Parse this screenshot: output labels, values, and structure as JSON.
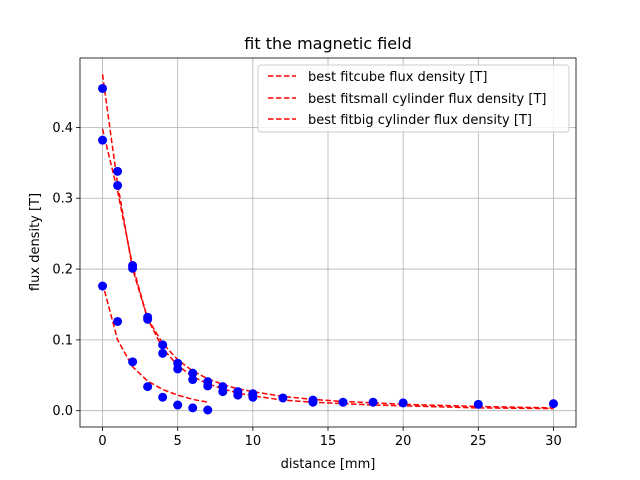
{
  "chart_data": {
    "type": "scatter",
    "title": "fit the magnetic field",
    "xlabel": "distance [mm]",
    "ylabel": "flux density [T]",
    "xlim": [
      -1.5,
      31.5
    ],
    "ylim": [
      -0.023,
      0.498
    ],
    "xticks": [
      0,
      5,
      10,
      15,
      20,
      25,
      30
    ],
    "yticks": [
      0.0,
      0.1,
      0.2,
      0.3,
      0.4
    ],
    "xtick_labels": [
      "0",
      "5",
      "10",
      "15",
      "20",
      "25",
      "30"
    ],
    "ytick_labels": [
      "0.0",
      "0.1",
      "0.2",
      "0.3",
      "0.4"
    ],
    "grid": true,
    "legend_position": "top-right",
    "marker_color": "#0000ff",
    "fit_color": "#ff0000",
    "points": [
      {
        "x": 0,
        "y": 0.455
      },
      {
        "x": 0,
        "y": 0.382
      },
      {
        "x": 0,
        "y": 0.176
      },
      {
        "x": 1,
        "y": 0.338
      },
      {
        "x": 1,
        "y": 0.318
      },
      {
        "x": 1,
        "y": 0.126
      },
      {
        "x": 2,
        "y": 0.205
      },
      {
        "x": 2,
        "y": 0.201
      },
      {
        "x": 2,
        "y": 0.069
      },
      {
        "x": 3,
        "y": 0.132
      },
      {
        "x": 3,
        "y": 0.129
      },
      {
        "x": 3,
        "y": 0.034
      },
      {
        "x": 4,
        "y": 0.093
      },
      {
        "x": 4,
        "y": 0.081
      },
      {
        "x": 4,
        "y": 0.019
      },
      {
        "x": 5,
        "y": 0.067
      },
      {
        "x": 5,
        "y": 0.059
      },
      {
        "x": 5,
        "y": 0.008
      },
      {
        "x": 6,
        "y": 0.053
      },
      {
        "x": 6,
        "y": 0.044
      },
      {
        "x": 6,
        "y": 0.004
      },
      {
        "x": 7,
        "y": 0.041
      },
      {
        "x": 7,
        "y": 0.035
      },
      {
        "x": 7,
        "y": 0.001
      },
      {
        "x": 8,
        "y": 0.034
      },
      {
        "x": 8,
        "y": 0.027
      },
      {
        "x": 9,
        "y": 0.027
      },
      {
        "x": 9,
        "y": 0.022
      },
      {
        "x": 10,
        "y": 0.024
      },
      {
        "x": 10,
        "y": 0.019
      },
      {
        "x": 12,
        "y": 0.018
      },
      {
        "x": 14,
        "y": 0.015
      },
      {
        "x": 14,
        "y": 0.012
      },
      {
        "x": 16,
        "y": 0.012
      },
      {
        "x": 18,
        "y": 0.012
      },
      {
        "x": 20,
        "y": 0.011
      },
      {
        "x": 25,
        "y": 0.009
      },
      {
        "x": 30,
        "y": 0.01
      }
    ],
    "series": [
      {
        "name": "best fitcube flux density [T]",
        "x": [
          0,
          1,
          2,
          3,
          4,
          5,
          6,
          7,
          8,
          9,
          10,
          12,
          14,
          16,
          18,
          20,
          25,
          30
        ],
        "y": [
          0.475,
          0.32,
          0.2,
          0.13,
          0.095,
          0.072,
          0.056,
          0.045,
          0.037,
          0.031,
          0.027,
          0.02,
          0.016,
          0.013,
          0.011,
          0.009,
          0.006,
          0.004
        ]
      },
      {
        "name": "best fitsmall cylinder flux density [T]",
        "x": [
          0,
          1,
          2,
          3,
          4,
          5,
          6,
          7,
          8,
          9,
          10,
          12,
          14,
          16,
          18,
          20,
          25,
          30
        ],
        "y": [
          0.398,
          0.31,
          0.205,
          0.13,
          0.088,
          0.064,
          0.048,
          0.038,
          0.031,
          0.025,
          0.021,
          0.015,
          0.012,
          0.01,
          0.008,
          0.007,
          0.004,
          0.003
        ]
      },
      {
        "name": "best fitbig cylinder flux density [T]",
        "x": [
          0,
          1,
          2,
          3,
          4,
          5,
          6,
          7
        ],
        "y": [
          0.18,
          0.1,
          0.062,
          0.042,
          0.03,
          0.022,
          0.016,
          0.012
        ]
      }
    ]
  }
}
